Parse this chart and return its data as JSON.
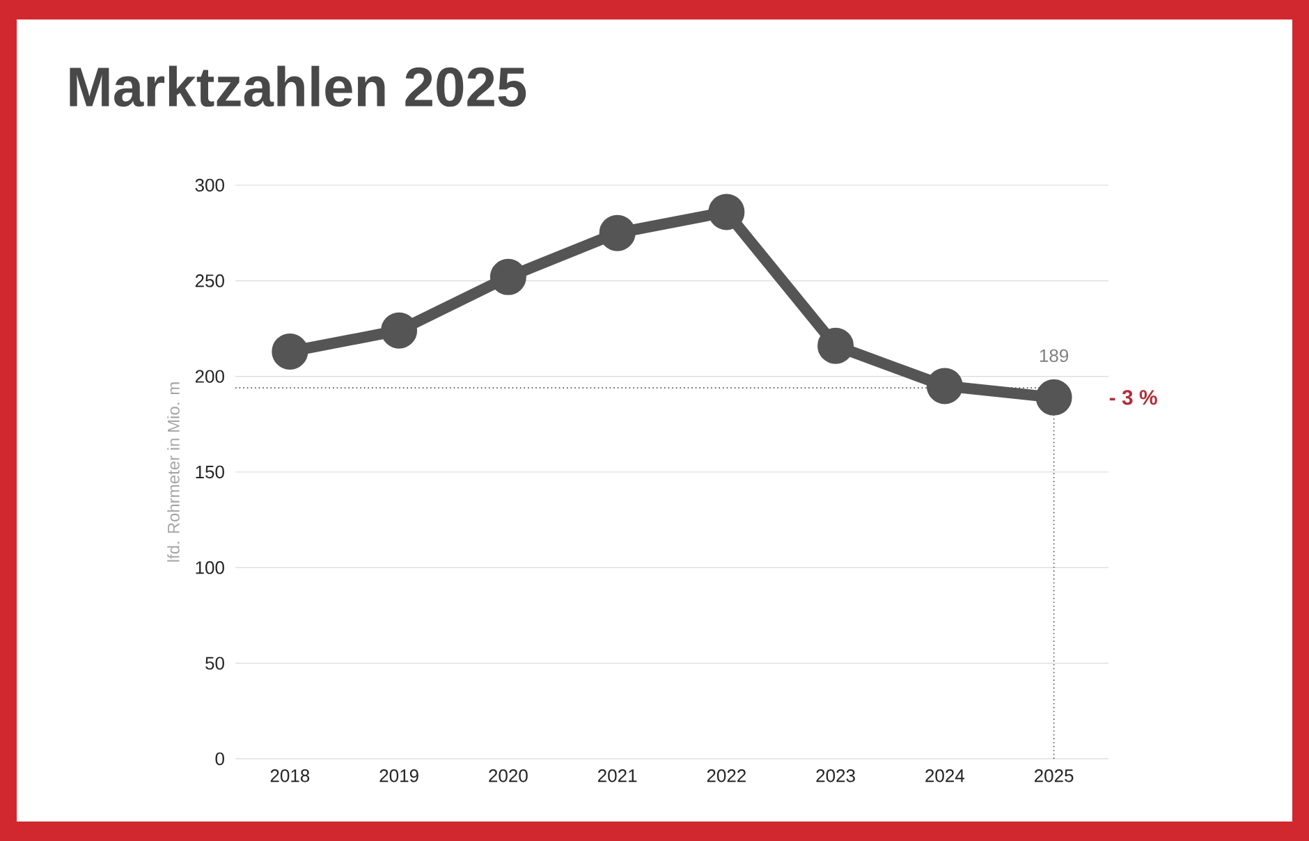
{
  "chart_data": {
    "type": "line",
    "title": "Marktzahlen 2025",
    "ylabel": "lfd. Rohrmeter in Mio. m",
    "categories": [
      "2018",
      "2019",
      "2020",
      "2021",
      "2022",
      "2023",
      "2024",
      "2025"
    ],
    "values": [
      213,
      224,
      252,
      275,
      286,
      216,
      195,
      189
    ],
    "value_labels": [
      null,
      null,
      null,
      null,
      null,
      null,
      null,
      "189"
    ],
    "color": "#555555",
    "ylim": [
      0,
      300
    ],
    "yticks": [
      0,
      50,
      100,
      150,
      200,
      250,
      300
    ],
    "grid": "y",
    "marker": "circle",
    "line_style": "solid",
    "ref_lines": [
      {
        "axis": "y",
        "value": 194,
        "line_style": "dotted"
      },
      {
        "axis": "x",
        "value": "2025",
        "line_style": "dotted"
      }
    ],
    "annotations": [
      {
        "text": "- 3 %",
        "x": "2025",
        "y": 189
      }
    ]
  }
}
